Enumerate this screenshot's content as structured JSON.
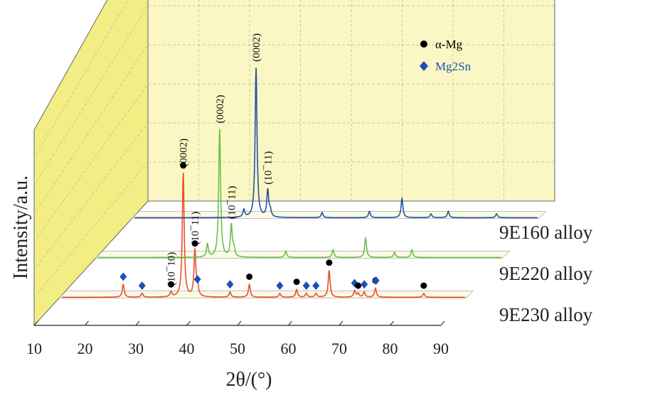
{
  "chart_data": {
    "type": "line",
    "title": "",
    "xlabel": "2θ/(°)",
    "ylabel": "Intensity/a.u.",
    "xlim": [
      10,
      90
    ],
    "x_ticks": [
      "10",
      "20",
      "30",
      "40",
      "50",
      "60",
      "70",
      "80",
      "90"
    ],
    "grid": true,
    "legend_position": "top-right",
    "legend": [
      {
        "label": "α-Mg",
        "marker": "circle",
        "color": "#000000"
      },
      {
        "label": "Mg2Sn",
        "marker": "diamond",
        "color": "#1f4fb5"
      }
    ],
    "series": [
      {
        "name": "9E230 alloy",
        "color": "#e8502a",
        "peaks": [
          {
            "x": 22.6,
            "y": 10
          },
          {
            "x": 26.3,
            "y": 3
          },
          {
            "x": 32.0,
            "y": 4
          },
          {
            "x": 34.4,
            "y": 97
          },
          {
            "x": 36.7,
            "y": 36
          },
          {
            "x": 37.2,
            "y": 8
          },
          {
            "x": 43.6,
            "y": 4
          },
          {
            "x": 47.4,
            "y": 10
          },
          {
            "x": 53.4,
            "y": 3
          },
          {
            "x": 56.7,
            "y": 6
          },
          {
            "x": 58.6,
            "y": 3
          },
          {
            "x": 60.5,
            "y": 3
          },
          {
            "x": 63.1,
            "y": 21
          },
          {
            "x": 68.1,
            "y": 5
          },
          {
            "x": 68.8,
            "y": 3
          },
          {
            "x": 70.0,
            "y": 4
          },
          {
            "x": 72.2,
            "y": 7
          },
          {
            "x": 81.7,
            "y": 3
          }
        ],
        "annotations": [
          {
            "x": 34.4,
            "text": "(0002)"
          },
          {
            "x": 36.7,
            "text": "(10¯11)"
          },
          {
            "x": 32.0,
            "text": "(10¯10)"
          }
        ],
        "markers": [
          {
            "x": 22.6,
            "phase": "Mg2Sn"
          },
          {
            "x": 26.3,
            "phase": "Mg2Sn"
          },
          {
            "x": 32.0,
            "phase": "α-Mg"
          },
          {
            "x": 34.4,
            "phase": "α-Mg"
          },
          {
            "x": 36.7,
            "phase": "α-Mg"
          },
          {
            "x": 37.2,
            "phase": "Mg2Sn"
          },
          {
            "x": 43.6,
            "phase": "Mg2Sn"
          },
          {
            "x": 47.4,
            "phase": "α-Mg"
          },
          {
            "x": 53.4,
            "phase": "Mg2Sn"
          },
          {
            "x": 56.7,
            "phase": "α-Mg"
          },
          {
            "x": 58.6,
            "phase": "Mg2Sn"
          },
          {
            "x": 60.5,
            "phase": "Mg2Sn"
          },
          {
            "x": 63.1,
            "phase": "α-Mg"
          },
          {
            "x": 68.1,
            "phase": "Mg2Sn"
          },
          {
            "x": 68.8,
            "phase": "α-Mg"
          },
          {
            "x": 70.0,
            "phase": "Mg2Sn"
          },
          {
            "x": 72.2,
            "phase": "α-Mg"
          },
          {
            "x": 72.3,
            "phase": "Mg2Sn"
          },
          {
            "x": 81.7,
            "phase": "α-Mg"
          }
        ]
      },
      {
        "name": "9E220 alloy",
        "color": "#6cbf4a",
        "peaks": [
          {
            "x": 32.0,
            "y": 10
          },
          {
            "x": 34.4,
            "y": 100
          },
          {
            "x": 36.7,
            "y": 25
          },
          {
            "x": 37.2,
            "y": 6
          },
          {
            "x": 47.4,
            "y": 5
          },
          {
            "x": 56.7,
            "y": 6
          },
          {
            "x": 63.1,
            "y": 15
          },
          {
            "x": 68.8,
            "y": 4
          },
          {
            "x": 72.2,
            "y": 6
          }
        ],
        "annotations": [
          {
            "x": 34.4,
            "text": "(0002)"
          },
          {
            "x": 36.7,
            "text": "(10¯11)"
          }
        ]
      },
      {
        "name": "9E160 alloy",
        "color": "#2550a8",
        "peaks": [
          {
            "x": 32.0,
            "y": 6
          },
          {
            "x": 34.4,
            "y": 117
          },
          {
            "x": 36.7,
            "y": 21
          },
          {
            "x": 37.2,
            "y": 5
          },
          {
            "x": 47.4,
            "y": 4
          },
          {
            "x": 56.7,
            "y": 5
          },
          {
            "x": 63.1,
            "y": 15
          },
          {
            "x": 68.8,
            "y": 3
          },
          {
            "x": 72.2,
            "y": 5
          },
          {
            "x": 81.7,
            "y": 3
          }
        ],
        "annotations": [
          {
            "x": 34.4,
            "text": "(0002)"
          },
          {
            "x": 36.7,
            "text": "(10¯11)"
          }
        ]
      }
    ]
  }
}
